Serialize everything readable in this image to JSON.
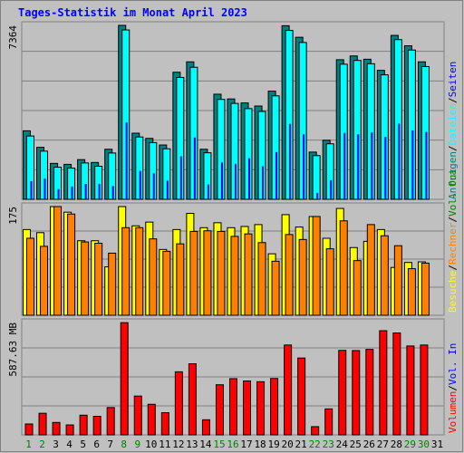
{
  "title": "Tages-Statistik im Monat April 2023",
  "colors": {
    "background": "#c0c0c0",
    "grid": "#808080",
    "title": "#0000ff",
    "anfragen": "#008080",
    "dateien": "#00ffff",
    "seiten": "#0000ff",
    "besuche": "#ffff00",
    "rechner": "#ff8000",
    "volumen": "#ff0000",
    "weekday_label": "#000000",
    "weekend_label": "#008000"
  },
  "chart_data": [
    {
      "type": "bar",
      "id": "hits",
      "max_label": "7364",
      "ylim": [
        0,
        7364
      ],
      "grid": true,
      "legend": {
        "items": [
          {
            "key": "anfragen",
            "label": "Anfragen",
            "color": "#008080"
          },
          {
            "key": "dateien",
            "label": "Dateien",
            "color": "#00ffff"
          },
          {
            "key": "seiten",
            "label": "Seiten",
            "color": "#0000ff"
          }
        ],
        "separator": "/",
        "placement": "right, vertical"
      },
      "categories": [
        "1",
        "2",
        "3",
        "4",
        "5",
        "6",
        "7",
        "8",
        "9",
        "10",
        "11",
        "12",
        "13",
        "14",
        "15",
        "16",
        "17",
        "18",
        "19",
        "20",
        "21",
        "22",
        "23",
        "24",
        "25",
        "26",
        "27",
        "28",
        "29",
        "30",
        "31"
      ],
      "series": [
        {
          "name": "Anfragen",
          "values": [
            2900,
            2200,
            1520,
            1480,
            1680,
            1560,
            2120,
            7364,
            2800,
            2580,
            2300,
            5380,
            5820,
            2120,
            4450,
            4250,
            4080,
            3950,
            4580,
            7350,
            6860,
            2000,
            2500,
            5910,
            6070,
            5930,
            5460,
            6940,
            6500,
            5820,
            0
          ]
        },
        {
          "name": "Dateien",
          "values": [
            2680,
            2040,
            1360,
            1320,
            1540,
            1400,
            1960,
            7170,
            2640,
            2400,
            2140,
            5160,
            5590,
            1970,
            4230,
            4060,
            3840,
            3720,
            4380,
            7150,
            6640,
            1850,
            2350,
            5720,
            5880,
            5740,
            5270,
            6760,
            6320,
            5620,
            0
          ]
        },
        {
          "name": "Seiten",
          "values": [
            770,
            880,
            430,
            540,
            650,
            650,
            560,
            3250,
            1200,
            1100,
            790,
            1820,
            2620,
            630,
            1560,
            1500,
            1740,
            1400,
            2000,
            3190,
            2750,
            270,
            810,
            2810,
            2750,
            2830,
            2640,
            3200,
            2920,
            2850,
            0
          ]
        }
      ]
    },
    {
      "type": "bar",
      "id": "visits",
      "max_label": "175",
      "ylim": [
        0,
        175
      ],
      "grid": true,
      "legend": {
        "items": [
          {
            "key": "besuche",
            "label": "Besuche",
            "color": "#ffff00"
          },
          {
            "key": "rechner",
            "label": "Rechner",
            "color": "#ff8000"
          },
          {
            "key": "out",
            "label": "Vol. Out",
            "color": "#008000"
          }
        ],
        "separator": "/",
        "placement": "right, vertical"
      },
      "categories": [
        "1",
        "2",
        "3",
        "4",
        "5",
        "6",
        "7",
        "8",
        "9",
        "10",
        "11",
        "12",
        "13",
        "14",
        "15",
        "16",
        "17",
        "18",
        "19",
        "20",
        "21",
        "22",
        "23",
        "24",
        "25",
        "26",
        "27",
        "28",
        "29",
        "30",
        "31"
      ],
      "series": [
        {
          "name": "Besuche",
          "values": [
            138,
            133,
            175,
            166,
            120,
            120,
            78,
            175,
            144,
            150,
            106,
            138,
            164,
            141,
            149,
            141,
            143,
            146,
            99,
            162,
            142,
            159,
            124,
            172,
            109,
            119,
            138,
            77,
            85,
            86,
            0
          ]
        },
        {
          "name": "Rechner",
          "values": [
            124,
            111,
            175,
            163,
            118,
            116,
            100,
            141,
            141,
            123,
            103,
            115,
            135,
            136,
            135,
            127,
            131,
            117,
            87,
            130,
            122,
            159,
            107,
            152,
            88,
            146,
            128,
            112,
            75,
            84,
            0
          ]
        }
      ]
    },
    {
      "type": "bar",
      "id": "volume",
      "max_label": "587.63 MB",
      "ylim": [
        0,
        587.63
      ],
      "grid": true,
      "legend": {
        "items": [
          {
            "key": "volumen",
            "label": "Volumen",
            "color": "#ff0000"
          },
          {
            "key": "in",
            "label": "Vol. In",
            "color": "#0000ff"
          }
        ],
        "separator": "/",
        "placement": "right, vertical"
      },
      "categories": [
        "1",
        "2",
        "3",
        "4",
        "5",
        "6",
        "7",
        "8",
        "9",
        "10",
        "11",
        "12",
        "13",
        "14",
        "15",
        "16",
        "17",
        "18",
        "19",
        "20",
        "21",
        "22",
        "23",
        "24",
        "25",
        "26",
        "27",
        "28",
        "29",
        "30",
        "31"
      ],
      "series": [
        {
          "name": "Volumen",
          "values": [
            57,
            113,
            65,
            52,
            103,
            97,
            143,
            587,
            203,
            160,
            116,
            330,
            372,
            79,
            262,
            294,
            282,
            278,
            295,
            470,
            402,
            43,
            136,
            442,
            441,
            447,
            545,
            533,
            465,
            470,
            0
          ]
        }
      ]
    }
  ],
  "x_axis": {
    "days": [
      "1",
      "2",
      "3",
      "4",
      "5",
      "6",
      "7",
      "8",
      "9",
      "10",
      "11",
      "12",
      "13",
      "14",
      "15",
      "16",
      "17",
      "18",
      "19",
      "20",
      "21",
      "22",
      "23",
      "24",
      "25",
      "26",
      "27",
      "28",
      "29",
      "30",
      "31"
    ],
    "weekend_days": [
      "1",
      "2",
      "8",
      "9",
      "15",
      "16",
      "22",
      "23",
      "29",
      "30"
    ]
  }
}
